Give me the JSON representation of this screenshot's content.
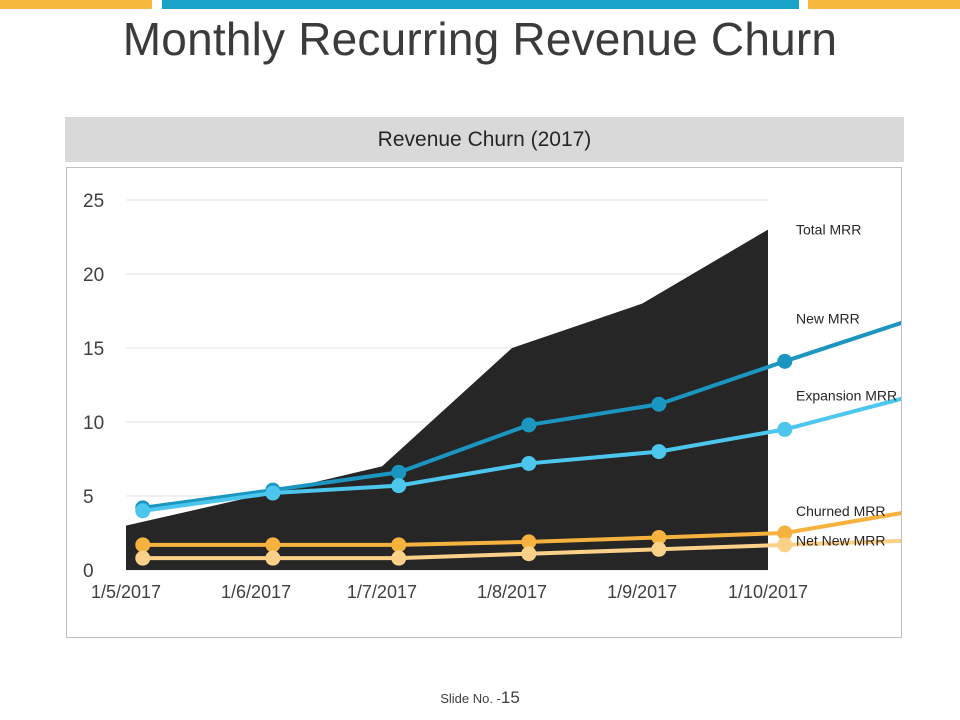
{
  "page": {
    "title": "Monthly Recurring Revenue Churn",
    "slide_label": "Slide No. -",
    "slide_number": "15",
    "accent_colors": {
      "yellow": "#f6b93b",
      "blue": "#1aa3c9"
    }
  },
  "chart_data": {
    "type": "line",
    "title": "Revenue Churn (2017)",
    "xlabel": "",
    "ylabel": "",
    "x_ticks": [
      "1/5/2017",
      "1/6/2017",
      "1/7/2017",
      "1/8/2017",
      "1/9/2017",
      "1/10/2017"
    ],
    "ylim": [
      0,
      25
    ],
    "y_ticks": [
      0,
      5,
      10,
      15,
      20,
      25
    ],
    "grid": true,
    "legend": "right, labels at series ends",
    "area_series": {
      "name": "Total MRR",
      "color": "#262626",
      "points": [
        {
          "x": "2017-05-01",
          "y": 3
        },
        {
          "x": "2017-06-01",
          "y": 5
        },
        {
          "x": "2017-07-01",
          "y": 7
        },
        {
          "x": "2017-08-01",
          "y": 15
        },
        {
          "x": "2017-09-01",
          "y": 18
        },
        {
          "x": "2017-10-01",
          "y": 23
        }
      ]
    },
    "series": [
      {
        "name": "New MRR",
        "color": "#1a96c0",
        "points": [
          {
            "x": "2017-05-05",
            "y": 4.2
          },
          {
            "x": "2017-06-05",
            "y": 5.4
          },
          {
            "x": "2017-07-05",
            "y": 6.6
          },
          {
            "x": "2017-08-05",
            "y": 9.8
          },
          {
            "x": "2017-09-05",
            "y": 11.2
          },
          {
            "x": "2017-10-05",
            "y": 14.1
          },
          {
            "x": "2017-11-05",
            "y": 17.0
          }
        ]
      },
      {
        "name": "Expansion MRR",
        "color": "#4cc6ec",
        "points": [
          {
            "x": "2017-05-05",
            "y": 4.0
          },
          {
            "x": "2017-06-05",
            "y": 5.2
          },
          {
            "x": "2017-07-05",
            "y": 5.7
          },
          {
            "x": "2017-08-05",
            "y": 7.2
          },
          {
            "x": "2017-09-05",
            "y": 8.0
          },
          {
            "x": "2017-10-05",
            "y": 9.5
          },
          {
            "x": "2017-11-05",
            "y": 11.8
          }
        ]
      },
      {
        "name": "Churned MRR",
        "color": "#f6b23e",
        "points": [
          {
            "x": "2017-05-05",
            "y": 1.7
          },
          {
            "x": "2017-06-05",
            "y": 1.7
          },
          {
            "x": "2017-07-05",
            "y": 1.7
          },
          {
            "x": "2017-08-05",
            "y": 1.9
          },
          {
            "x": "2017-09-05",
            "y": 2.2
          },
          {
            "x": "2017-10-05",
            "y": 2.5
          },
          {
            "x": "2017-11-05",
            "y": 4.0
          }
        ]
      },
      {
        "name": "Net New MRR",
        "color": "#fbd18a",
        "points": [
          {
            "x": "2017-05-05",
            "y": 0.8
          },
          {
            "x": "2017-06-05",
            "y": 0.8
          },
          {
            "x": "2017-07-05",
            "y": 0.8
          },
          {
            "x": "2017-08-05",
            "y": 1.1
          },
          {
            "x": "2017-09-05",
            "y": 1.4
          },
          {
            "x": "2017-10-05",
            "y": 1.7
          },
          {
            "x": "2017-11-05",
            "y": 2.0
          }
        ]
      }
    ]
  }
}
